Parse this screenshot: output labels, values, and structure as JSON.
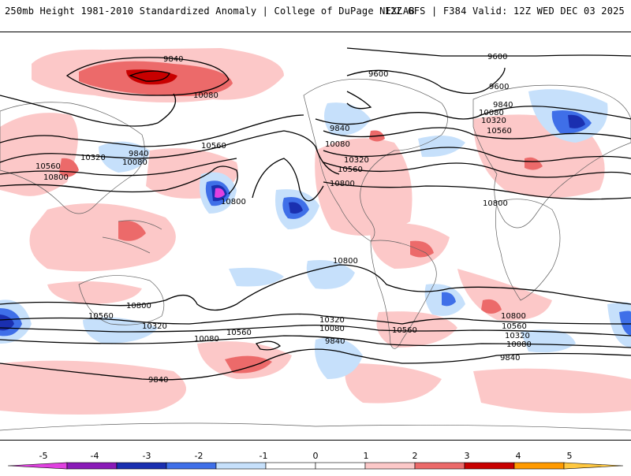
{
  "header": {
    "left": "250mb Height 1981-2010 Standardized Anomaly | College of DuPage NEXLAB",
    "right": "12Z GFS | F384 Valid: 12Z WED DEC 03 2025"
  },
  "contour_labels": {
    "a": "9840",
    "b": "10080",
    "c": "9600",
    "d": "9600",
    "e": "9600",
    "f": "9840",
    "g": "10080",
    "h": "10320",
    "i": "10560",
    "j": "9840",
    "k": "10080",
    "l": "10320",
    "m": "10560",
    "n": "10800",
    "o": "10560",
    "p": "10800",
    "q": "10320",
    "r": "9840",
    "s": "10080",
    "t": "10560",
    "u": "10800",
    "v": "10800",
    "w": "10800",
    "x": "10560",
    "y": "10320",
    "z": "10080",
    "aa": "10560",
    "ab": "10320",
    "ac": "10080",
    "ad": "9840",
    "ae": "10560",
    "af": "9840",
    "ag": "10800",
    "ah": "10560",
    "ai": "10320",
    "aj": "10080",
    "ak": "9840",
    "al": "10800"
  },
  "colorbar": {
    "ticks": [
      "-5",
      "-4",
      "-3",
      "-2",
      "-1",
      "0",
      "1",
      "2",
      "3",
      "4",
      "5"
    ],
    "colors": [
      "#e040e0",
      "#8a1ab8",
      "#1a2fb0",
      "#3f6fe8",
      "#c6e0fb",
      "#ffffff",
      "#ffffff",
      "#fcc8c8",
      "#ec6a6a",
      "#c80000",
      "#ff9a00",
      "#ffc840"
    ]
  }
}
